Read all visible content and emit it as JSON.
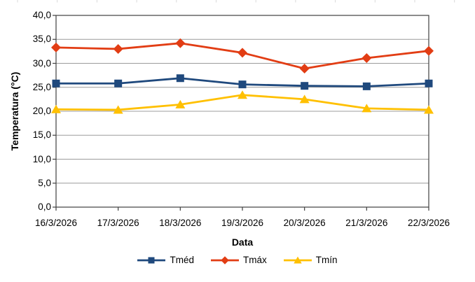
{
  "chart_data": {
    "type": "line",
    "title": "",
    "categories": [
      "16/3/2026",
      "17/3/2026",
      "18/3/2026",
      "19/3/2026",
      "20/3/2026",
      "21/3/2026",
      "22/3/2026"
    ],
    "series": [
      {
        "name": "Tméd",
        "marker": "square",
        "color": "#1F497D",
        "values": [
          25.8,
          25.8,
          26.9,
          25.6,
          25.3,
          25.2,
          25.8
        ]
      },
      {
        "name": "Tmáx",
        "marker": "diamond",
        "color": "#E23D14",
        "values": [
          33.3,
          33.0,
          34.2,
          32.2,
          28.9,
          31.1,
          32.6
        ]
      },
      {
        "name": "Tmín",
        "marker": "triangle",
        "color": "#FFC000",
        "values": [
          20.4,
          20.3,
          21.4,
          23.4,
          22.5,
          20.6,
          20.3
        ]
      }
    ],
    "xlabel": "Data",
    "ylabel": "Temperatura (°C)",
    "ylim": [
      0,
      40
    ],
    "y_tick_step": 5,
    "y_tick_labels": [
      "0,0",
      "5,0",
      "10,0",
      "15,0",
      "20,0",
      "25,0",
      "30,0",
      "35,0",
      "40,0"
    ],
    "grid": "horizontal-only",
    "legend_position": "bottom"
  },
  "style": {
    "background": "#FFFFFF",
    "grid_color": "#9C9C9C",
    "axis_color": "#404040",
    "text_color": "#000000",
    "top_ruler_color": "#D9D9D9"
  }
}
